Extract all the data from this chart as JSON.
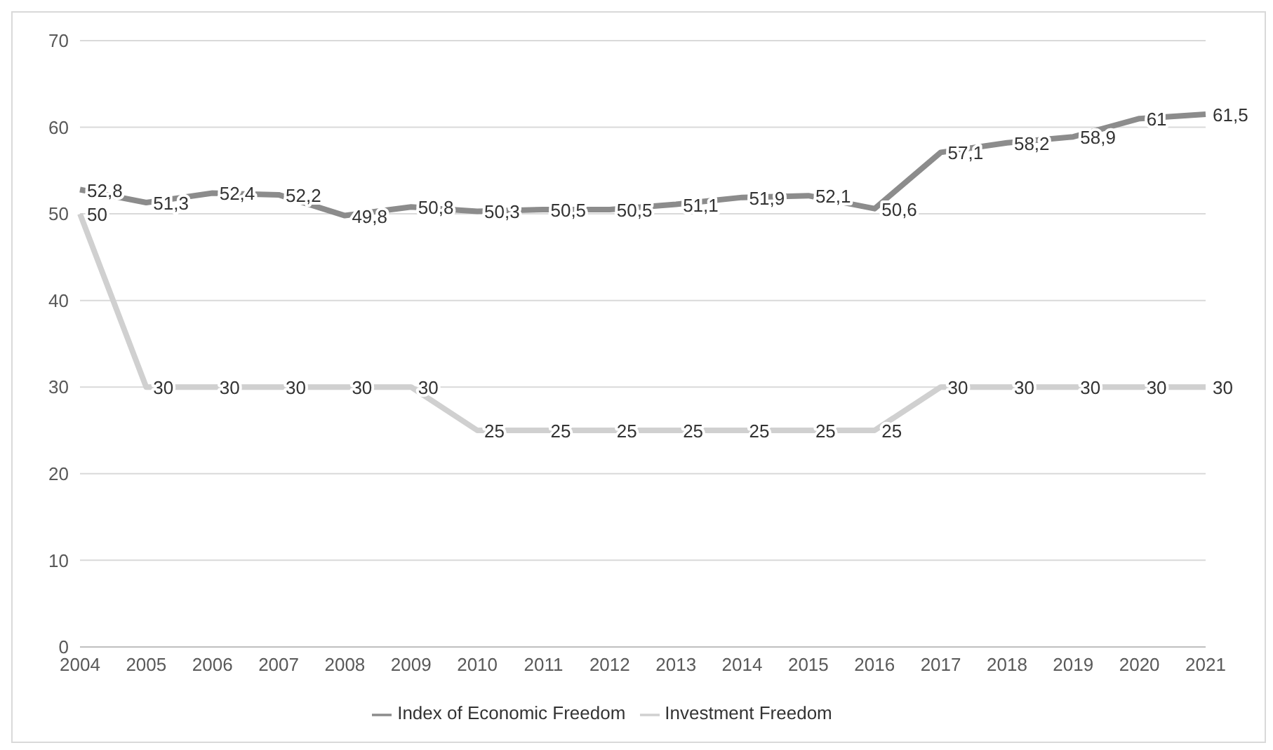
{
  "chart_data": {
    "type": "line",
    "categories": [
      "2004",
      "2005",
      "2006",
      "2007",
      "2008",
      "2009",
      "2010",
      "2011",
      "2012",
      "2013",
      "2014",
      "2015",
      "2016",
      "2017",
      "2018",
      "2019",
      "2020",
      "2021"
    ],
    "series": [
      {
        "name": "Index of Economic Freedom",
        "color": "#8c8c8c",
        "values": [
          52.8,
          51.3,
          52.4,
          52.2,
          49.8,
          50.8,
          50.3,
          50.5,
          50.5,
          51.1,
          51.9,
          52.1,
          50.6,
          57.1,
          58.2,
          58.9,
          61,
          61.5
        ],
        "value_labels": [
          "52,8",
          "51,3",
          "52,4",
          "52,2",
          "49,8",
          "50,8",
          "50,3",
          "50,5",
          "50,5",
          "51,1",
          "51,9",
          "52,1",
          "50,6",
          "57,1",
          "58,2",
          "58,9",
          "61",
          "61,5"
        ]
      },
      {
        "name": "Investment Freedom",
        "color": "#d0d0d0",
        "values": [
          50,
          30,
          30,
          30,
          30,
          30,
          25,
          25,
          25,
          25,
          25,
          25,
          25,
          30,
          30,
          30,
          30,
          30
        ],
        "value_labels": [
          "50",
          "30",
          "30",
          "30",
          "30",
          "30",
          "25",
          "25",
          "25",
          "25",
          "25",
          "25",
          "25",
          "30",
          "30",
          "30",
          "30",
          "30"
        ]
      }
    ],
    "ylim": [
      0,
      70
    ],
    "yticks": [
      0,
      10,
      20,
      30,
      40,
      50,
      60,
      70
    ],
    "grid": "y",
    "legend": "bottom",
    "marker": "none",
    "line_style": "solid"
  }
}
